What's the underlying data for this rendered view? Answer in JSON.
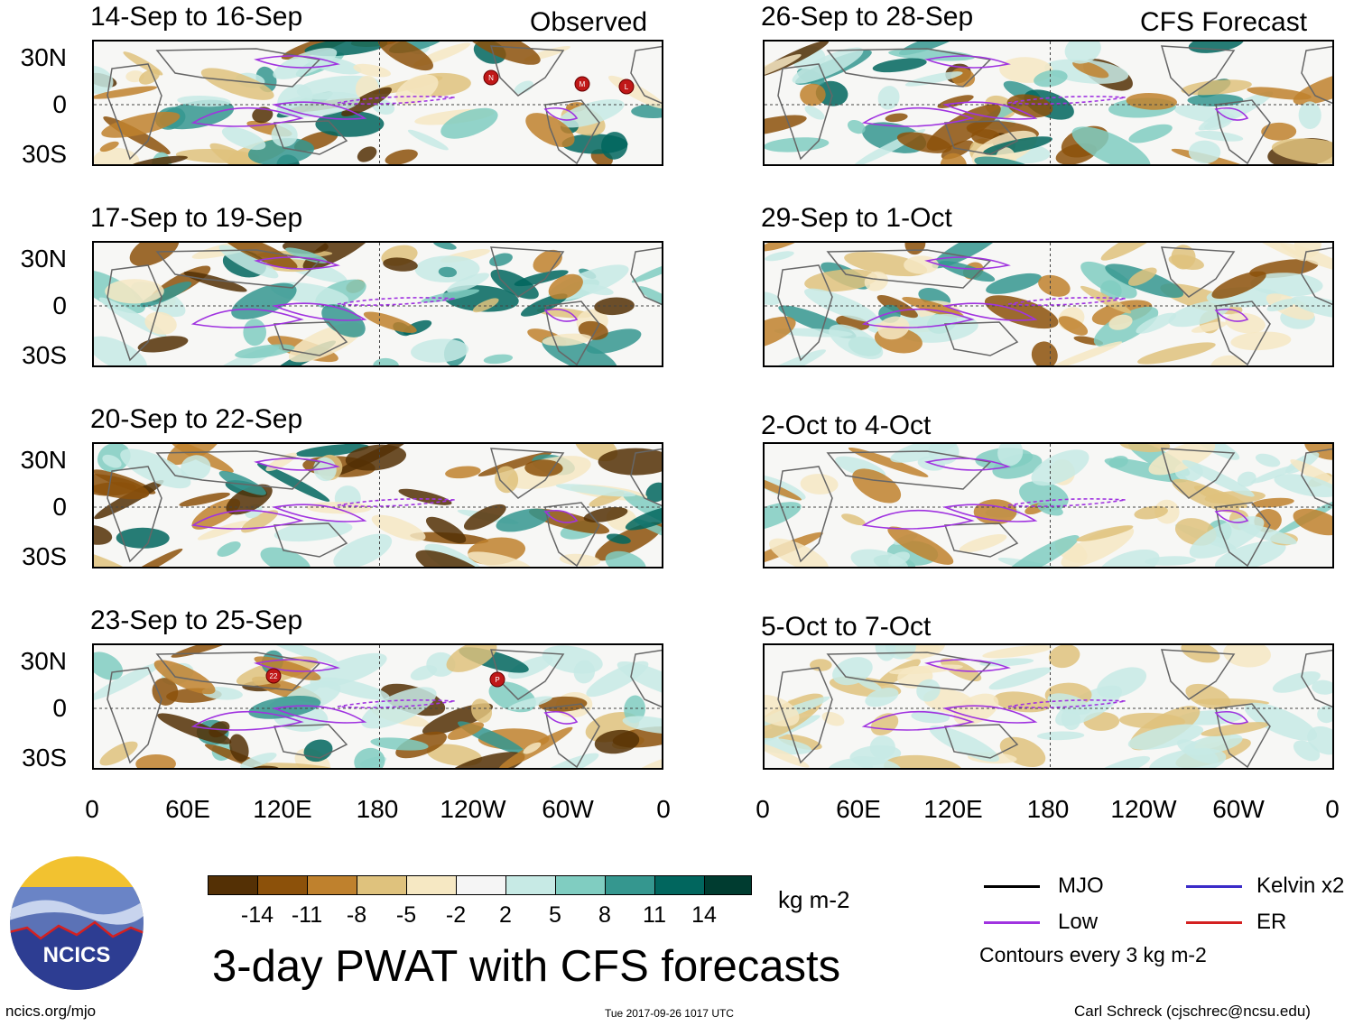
{
  "header": {
    "observed_label": "Observed",
    "forecast_label": "CFS Forecast"
  },
  "panels": {
    "left": [
      {
        "title": "14-Sep to 16-Sep"
      },
      {
        "title": "17-Sep to 19-Sep"
      },
      {
        "title": "20-Sep to 22-Sep"
      },
      {
        "title": "23-Sep to 25-Sep"
      }
    ],
    "right": [
      {
        "title": "26-Sep to 28-Sep"
      },
      {
        "title": "29-Sep to 1-Oct"
      },
      {
        "title": "2-Oct to 4-Oct"
      },
      {
        "title": "5-Oct to 7-Oct"
      }
    ]
  },
  "axes": {
    "lat_ticks": [
      "30N",
      "0",
      "30S"
    ],
    "lon_ticks": [
      "0",
      "60E",
      "120E",
      "180",
      "120W",
      "60W",
      "0"
    ]
  },
  "storm_markers": [
    {
      "panel": "left-0",
      "label": "N"
    },
    {
      "panel": "left-0",
      "label": "M"
    },
    {
      "panel": "left-0",
      "label": "L"
    },
    {
      "panel": "left-3",
      "label": "22"
    },
    {
      "panel": "left-3",
      "label": "P"
    }
  ],
  "colorbar": {
    "ticks": [
      "-14",
      "-11",
      "-8",
      "-5",
      "-2",
      "2",
      "5",
      "8",
      "11",
      "14"
    ],
    "unit": "kg m-2",
    "colors": [
      "#543005",
      "#8c510a",
      "#bf812d",
      "#dfc27d",
      "#f6e8c3",
      "#f5f5f5",
      "#c7eae5",
      "#80cdc1",
      "#35978f",
      "#01665e",
      "#003c30"
    ]
  },
  "legend": {
    "items": [
      {
        "label": "MJO",
        "color": "#000000"
      },
      {
        "label": "Kelvin x2",
        "color": "#3a2bc8"
      },
      {
        "label": "Low",
        "color": "#a033e0"
      },
      {
        "label": "ER",
        "color": "#d42020"
      }
    ],
    "contour_note": "Contours every 3 kg m-2"
  },
  "logo": {
    "text": "NCICS"
  },
  "footer": {
    "main_title": "3-day PWAT with CFS forecasts",
    "url": "ncics.org/mjo",
    "timestamp": "Tue 2017-09-26 1017 UTC",
    "credit": "Carl Schreck (cjschrec@ncsu.edu)"
  }
}
